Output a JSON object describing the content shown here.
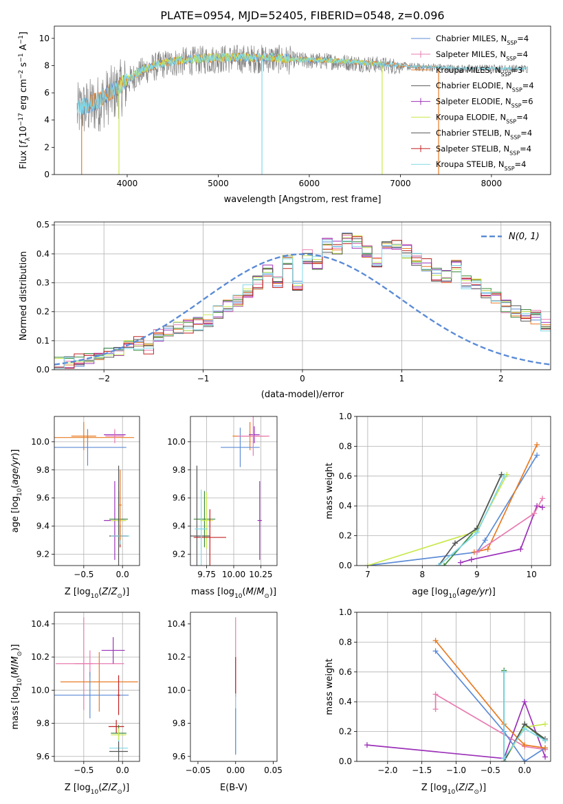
{
  "figure_title": "PLATE=0954, MJD=52405, FIBERID=0548, z=0.096",
  "colors": {
    "chabrier_miles": "#5b8bd6",
    "salpeter_miles": "#e87a20",
    "kroupa_miles": "#e87a20",
    "chabrier_elodie": "#3a8a3a",
    "salpeter_elodie": "#9b30b8",
    "kroupa_elodie": "#c8e84a",
    "chabrier_stelib": "#555555",
    "salpeter_stelib": "#c02020",
    "kroupa_stelib": "#7fd8e8",
    "pink": "#e87ab0",
    "data": "#808080",
    "normal": "#5b8bd6"
  },
  "chart_data": [
    {
      "id": "spectrum",
      "type": "line",
      "title": "PLATE=0954, MJD=52405, FIBERID=0548, z=0.096",
      "xlabel": "wavelength [Angstrom, rest frame]",
      "ylabel": "Flux [f_λ 10^-17 erg cm^-2 s^-1 A^-1]",
      "xlim": [
        3200,
        8650
      ],
      "ylim": [
        0,
        10.9
      ],
      "xticks": [
        4000,
        5000,
        6000,
        7000,
        8000
      ],
      "yticks": [
        0,
        2,
        4,
        6,
        8,
        10
      ],
      "grid": false,
      "legend_position": "top-right",
      "continuum": {
        "x": [
          3450,
          3500,
          3600,
          3700,
          3800,
          3900,
          4000,
          4100,
          4200,
          4400,
          4600,
          4800,
          5000,
          5200,
          5400,
          5600,
          5800,
          6000,
          6200,
          6400,
          6600,
          6800,
          7000,
          7200,
          7400,
          7600,
          7800,
          8000,
          8200,
          8400
        ],
        "y": [
          4.8,
          5.0,
          5.2,
          5.5,
          6.0,
          6.4,
          6.9,
          7.4,
          7.8,
          8.2,
          8.4,
          8.5,
          8.6,
          8.6,
          8.6,
          8.6,
          8.5,
          8.4,
          8.4,
          8.3,
          8.2,
          8.1,
          8.0,
          7.9,
          7.9,
          7.8,
          7.8,
          7.8,
          7.8,
          7.8
        ]
      },
      "series": [
        {
          "name": "Chabrier MILES, N_SSP=4",
          "label_main": "Chabrier MILES, N",
          "label_sub": "SSP",
          "label_end": "=4",
          "marker": "line"
        },
        {
          "name": "Salpeter MILES, N_SSP=4",
          "label_main": "Salpeter MILES, N",
          "label_sub": "SSP",
          "label_end": "=4",
          "marker": "plus"
        },
        {
          "name": "Kroupa MILES, N_SSP=3",
          "label_main": "Kroupa MILES, N",
          "label_sub": "SSP",
          "label_end": "=3",
          "marker": "line"
        },
        {
          "name": "Chabrier ELODIE, N_SSP=4",
          "label_main": "Chabrier ELODIE, N",
          "label_sub": "SSP",
          "label_end": "=4",
          "marker": "line"
        },
        {
          "name": "Salpeter ELODIE, N_SSP=6",
          "label_main": "Salpeter ELODIE, N",
          "label_sub": "SSP",
          "label_end": "=6",
          "marker": "plus"
        },
        {
          "name": "Kroupa ELODIE, N_SSP=4",
          "label_main": "Kroupa ELODIE, N",
          "label_sub": "SSP",
          "label_end": "=4",
          "marker": "line"
        },
        {
          "name": "Chabrier STELIB, N_SSP=4",
          "label_main": "Chabrier STELIB, N",
          "label_sub": "SSP",
          "label_end": "=4",
          "marker": "line"
        },
        {
          "name": "Salpeter STELIB, N_SSP=4",
          "label_main": "Salpeter STELIB, N",
          "label_sub": "SSP",
          "label_end": "=4",
          "marker": "plus"
        },
        {
          "name": "Kroupa STELIB, N_SSP=4",
          "label_main": "Kroupa STELIB, N",
          "label_sub": "SSP",
          "label_end": "=4",
          "marker": "line"
        }
      ]
    },
    {
      "id": "residuals",
      "type": "line",
      "xlabel": "(data-model)/error",
      "ylabel": "Normed distribution",
      "xlim": [
        -2.5,
        2.5
      ],
      "ylim": [
        0,
        0.51
      ],
      "xticks": [
        -2,
        -1,
        0,
        1,
        2
      ],
      "yticks": [
        0.0,
        0.1,
        0.2,
        0.3,
        0.4,
        0.5
      ],
      "grid": true,
      "legend_position": "top-right",
      "legend_label": "N(0, 1)",
      "normal_curve": {
        "mean": 0,
        "sigma": 1
      },
      "bin_width": 0.1,
      "histogram_approx": [
        0.02,
        0.02,
        0.03,
        0.04,
        0.05,
        0.06,
        0.07,
        0.08,
        0.09,
        0.07,
        0.12,
        0.13,
        0.14,
        0.15,
        0.16,
        0.17,
        0.2,
        0.22,
        0.24,
        0.27,
        0.3,
        0.34,
        0.3,
        0.37,
        0.29,
        0.39,
        0.37,
        0.43,
        0.42,
        0.46,
        0.44,
        0.41,
        0.38,
        0.42,
        0.44,
        0.41,
        0.38,
        0.36,
        0.33,
        0.32,
        0.36,
        0.3,
        0.29,
        0.26,
        0.25,
        0.22,
        0.2,
        0.19,
        0.18,
        0.15
      ]
    },
    {
      "id": "age_vs_z",
      "type": "scatter",
      "xlabel": "Z [log10(Z/Z⊙)]",
      "ylabel": "age [log10(age/yr)]",
      "xlim": [
        -0.88,
        0.22
      ],
      "ylim": [
        9.12,
        10.18
      ],
      "xticks": [
        -0.5,
        0.0
      ],
      "yticks": [
        9.2,
        9.4,
        9.6,
        9.8,
        10.0
      ],
      "grid": true,
      "points": [
        {
          "x": -0.5,
          "y": 10.04,
          "xerr": 0.16,
          "yerr": 0.1,
          "color": "#e87a20"
        },
        {
          "x": -0.45,
          "y": 9.96,
          "xerr": 0.5,
          "yerr": 0.13,
          "color": "#5b8bd6"
        },
        {
          "x": -0.45,
          "y": 10.03,
          "xerr": 0.6,
          "yerr": 0.04,
          "color": "#e87a20"
        },
        {
          "x": -0.1,
          "y": 10.05,
          "xerr": 0.14,
          "yerr": 0.02,
          "color": "#9b30b8"
        },
        {
          "x": -0.1,
          "y": 10.04,
          "xerr": 0.12,
          "yerr": 0.05,
          "color": "#e87ab0"
        },
        {
          "x": -0.1,
          "y": 9.44,
          "xerr": 0.14,
          "yerr": 0.28,
          "color": "#9b30b8"
        },
        {
          "x": -0.05,
          "y": 9.45,
          "xerr": 0.12,
          "yerr": 0.2,
          "color": "#3a8a3a"
        },
        {
          "x": -0.05,
          "y": 9.44,
          "xerr": 0.1,
          "yerr": 0.12,
          "color": "#c8e84a"
        },
        {
          "x": -0.05,
          "y": 9.33,
          "xerr": 0.12,
          "yerr": 0.5,
          "color": "#555555"
        },
        {
          "x": -0.03,
          "y": 9.33,
          "xerr": 0.1,
          "yerr": 0.08,
          "color": "#c02020"
        },
        {
          "x": -0.03,
          "y": 9.33,
          "xerr": 0.12,
          "yerr": 0.06,
          "color": "#7fd8e8"
        },
        {
          "x": -0.03,
          "y": 9.55,
          "xerr": 0.02,
          "yerr": 0.25,
          "color": "#e87a20"
        }
      ]
    },
    {
      "id": "age_vs_mass",
      "type": "scatter",
      "xlabel": "mass [log10(M/M⊙)]",
      "ylabel": "",
      "xlim": [
        9.6,
        10.4
      ],
      "ylim": [
        9.12,
        10.18
      ],
      "xticks": [
        9.75,
        10.0,
        10.25
      ],
      "xtick_labels": [
        "9.75",
        "10.00",
        "10.25"
      ],
      "yticks": [
        9.2,
        9.4,
        9.6,
        9.8,
        10.0
      ],
      "grid": true,
      "points": [
        {
          "x": 10.15,
          "y": 10.04,
          "xerr": 0.16,
          "yerr": 0.1,
          "color": "#e87a20"
        },
        {
          "x": 10.06,
          "y": 9.96,
          "xerr": 0.18,
          "yerr": 0.14,
          "color": "#5b8bd6"
        },
        {
          "x": 10.19,
          "y": 10.05,
          "xerr": 0.05,
          "yerr": 0.06,
          "color": "#9b30b8"
        },
        {
          "x": 10.18,
          "y": 10.04,
          "xerr": 0.15,
          "yerr": 0.14,
          "color": "#e87ab0"
        },
        {
          "x": 10.24,
          "y": 9.44,
          "xerr": 0.02,
          "yerr": 0.28,
          "color": "#9b30b8"
        },
        {
          "x": 9.73,
          "y": 9.45,
          "xerr": 0.1,
          "yerr": 0.2,
          "color": "#3a8a3a"
        },
        {
          "x": 9.75,
          "y": 9.44,
          "xerr": 0.06,
          "yerr": 0.2,
          "color": "#c8e84a"
        },
        {
          "x": 9.66,
          "y": 9.33,
          "xerr": 0.12,
          "yerr": 0.5,
          "color": "#555555"
        },
        {
          "x": 9.78,
          "y": 9.32,
          "xerr": 0.15,
          "yerr": 0.2,
          "color": "#c02020"
        },
        {
          "x": 9.7,
          "y": 9.38,
          "xerr": 0.06,
          "yerr": 0.28,
          "color": "#7fd8e8"
        }
      ]
    },
    {
      "id": "weight_vs_age",
      "type": "line",
      "xlabel": "age [log10(age/yr)]",
      "ylabel": "mass weight",
      "xlim": [
        6.8,
        10.35
      ],
      "ylim": [
        0,
        1.0
      ],
      "xticks": [
        7,
        8,
        9,
        10
      ],
      "yticks": [
        0.0,
        0.2,
        0.4,
        0.6,
        0.8,
        1.0
      ],
      "grid": true,
      "series": [
        {
          "color": "#5b8bd6",
          "x": [
            7.0,
            9.0,
            9.15,
            10.1
          ],
          "y": [
            0.0,
            0.09,
            0.17,
            0.74
          ]
        },
        {
          "color": "#e87a20",
          "x": [
            8.95,
            9.2,
            10.1
          ],
          "y": [
            0.09,
            0.11,
            0.81
          ]
        },
        {
          "color": "#9b30b8",
          "x": [
            8.7,
            8.9,
            9.8,
            10.1,
            10.2
          ],
          "y": [
            0.02,
            0.04,
            0.11,
            0.4,
            0.39
          ]
        },
        {
          "color": "#e87ab0",
          "x": [
            9.0,
            10.05,
            10.2
          ],
          "y": [
            0.09,
            0.35,
            0.45
          ]
        },
        {
          "color": "#3a8a3a",
          "x": [
            8.4,
            9.0,
            9.45
          ],
          "y": [
            0.0,
            0.25,
            0.61
          ]
        },
        {
          "color": "#c8e84a",
          "x": [
            7.0,
            9.0,
            9.55
          ],
          "y": [
            0.0,
            0.23,
            0.61
          ]
        },
        {
          "color": "#555555",
          "x": [
            8.3,
            8.6,
            9.0,
            9.45
          ],
          "y": [
            0.0,
            0.15,
            0.25,
            0.61
          ]
        },
        {
          "color": "#7fd8e8",
          "x": [
            8.3,
            9.0,
            9.5
          ],
          "y": [
            0.0,
            0.22,
            0.6
          ]
        }
      ]
    },
    {
      "id": "mass_vs_z",
      "type": "scatter",
      "xlabel": "Z [log10(Z/Z⊙)]",
      "ylabel": "mass [log10(M/M⊙)]",
      "xlim": [
        -0.88,
        0.22
      ],
      "ylim": [
        9.57,
        10.47
      ],
      "xticks": [
        -0.5,
        0.0
      ],
      "yticks": [
        9.6,
        9.8,
        10.0,
        10.2,
        10.4
      ],
      "grid": true,
      "points": [
        {
          "x": -0.5,
          "y": 10.16,
          "xerr": 0.12,
          "yerr": 0.28,
          "color": "#e87ab0"
        },
        {
          "x": -0.42,
          "y": 10.16,
          "xerr": 0.44,
          "yerr": 0.08,
          "color": "#e87ab0"
        },
        {
          "x": -0.12,
          "y": 10.24,
          "xerr": 0.15,
          "yerr": 0.08,
          "color": "#9b30b8"
        },
        {
          "x": -0.3,
          "y": 10.05,
          "xerr": 0.5,
          "yerr": 0.18,
          "color": "#e87a20"
        },
        {
          "x": -0.42,
          "y": 9.97,
          "xerr": 0.5,
          "yerr": 0.14,
          "color": "#5b8bd6"
        },
        {
          "x": -0.05,
          "y": 9.97,
          "xerr": 0.02,
          "yerr": 0.12,
          "color": "#c02020"
        },
        {
          "x": -0.08,
          "y": 9.78,
          "xerr": 0.1,
          "yerr": 0.04,
          "color": "#c02020"
        },
        {
          "x": -0.05,
          "y": 9.74,
          "xerr": 0.1,
          "yerr": 0.05,
          "color": "#3a8a3a"
        },
        {
          "x": -0.05,
          "y": 9.73,
          "xerr": 0.1,
          "yerr": 0.04,
          "color": "#c8e84a"
        },
        {
          "x": -0.05,
          "y": 9.65,
          "xerr": 0.12,
          "yerr": 0.05,
          "color": "#7fd8e8"
        },
        {
          "x": -0.05,
          "y": 9.63,
          "xerr": 0.12,
          "yerr": 0.06,
          "color": "#555555"
        }
      ]
    },
    {
      "id": "mass_vs_ebv",
      "type": "scatter",
      "xlabel": "E(B-V)",
      "ylabel": "",
      "xlim": [
        -0.06,
        0.055
      ],
      "ylim": [
        9.57,
        10.47
      ],
      "xticks": [
        -0.05,
        0.0,
        0.05
      ],
      "xtick_labels": [
        "−0.05",
        "0.00",
        "0.05"
      ],
      "yticks": [
        9.6,
        9.8,
        10.0,
        10.2,
        10.4
      ],
      "grid": false,
      "points": [
        {
          "x": 0.0,
          "y": 10.16,
          "xerr": 0.0,
          "yerr": 0.28,
          "color": "#e87ab0"
        },
        {
          "x": 0.0,
          "y": 10.08,
          "xerr": 0.0,
          "yerr": 0.12,
          "color": "#c02020"
        },
        {
          "x": 0.0,
          "y": 9.8,
          "xerr": 0.0,
          "yerr": 0.18,
          "color": "#7fd8e8"
        },
        {
          "x": 0.0,
          "y": 9.75,
          "xerr": 0.0,
          "yerr": 0.14,
          "color": "#5b8bd6"
        }
      ]
    },
    {
      "id": "weight_vs_z",
      "type": "line",
      "xlabel": "Z [log10(Z/Z⊙)]",
      "ylabel": "mass weight",
      "xlim": [
        -2.45,
        0.38
      ],
      "ylim": [
        0,
        1.0
      ],
      "xticks": [
        -2.0,
        -1.5,
        -1.0,
        -0.5,
        0.0
      ],
      "xtick_labels": [
        "−2.0",
        "−1.5",
        "−1.0",
        "−0.5",
        "0.0"
      ],
      "yticks": [
        0.0,
        0.2,
        0.4,
        0.6,
        0.8,
        1.0
      ],
      "grid": true,
      "series": [
        {
          "color": "#9b30b8",
          "x": [
            -2.3,
            -0.3,
            0.0,
            0.3
          ],
          "y": [
            0.11,
            0.02,
            0.4,
            0.03
          ]
        },
        {
          "color": "#e87ab0",
          "x": [
            -1.3,
            -1.3,
            0.0,
            0.3
          ],
          "y": [
            0.35,
            0.45,
            0.1,
            0.08
          ]
        },
        {
          "color": "#5b8bd6",
          "x": [
            -1.3,
            -0.3,
            0.0,
            0.3
          ],
          "y": [
            0.74,
            0.2,
            0.0,
            0.09
          ]
        },
        {
          "color": "#e87a20",
          "x": [
            -1.3,
            -0.3,
            0.0,
            0.3
          ],
          "y": [
            0.81,
            0.25,
            0.11,
            0.09
          ]
        },
        {
          "color": "#c8e84a",
          "x": [
            -0.3,
            -0.3,
            0.0,
            0.3
          ],
          "y": [
            0.61,
            0.0,
            0.23,
            0.25
          ]
        },
        {
          "color": "#3a8a3a",
          "x": [
            -0.3,
            -0.3,
            0.0,
            0.3
          ],
          "y": [
            0.61,
            0.0,
            0.25,
            0.14
          ]
        },
        {
          "color": "#555555",
          "x": [
            -0.3,
            -0.3,
            0.0,
            0.3
          ],
          "y": [
            0.6,
            0.0,
            0.25,
            0.15
          ]
        },
        {
          "color": "#7fd8e8",
          "x": [
            -0.3,
            -0.3,
            0.0,
            0.3
          ],
          "y": [
            0.6,
            0.02,
            0.22,
            0.14
          ]
        }
      ]
    }
  ]
}
